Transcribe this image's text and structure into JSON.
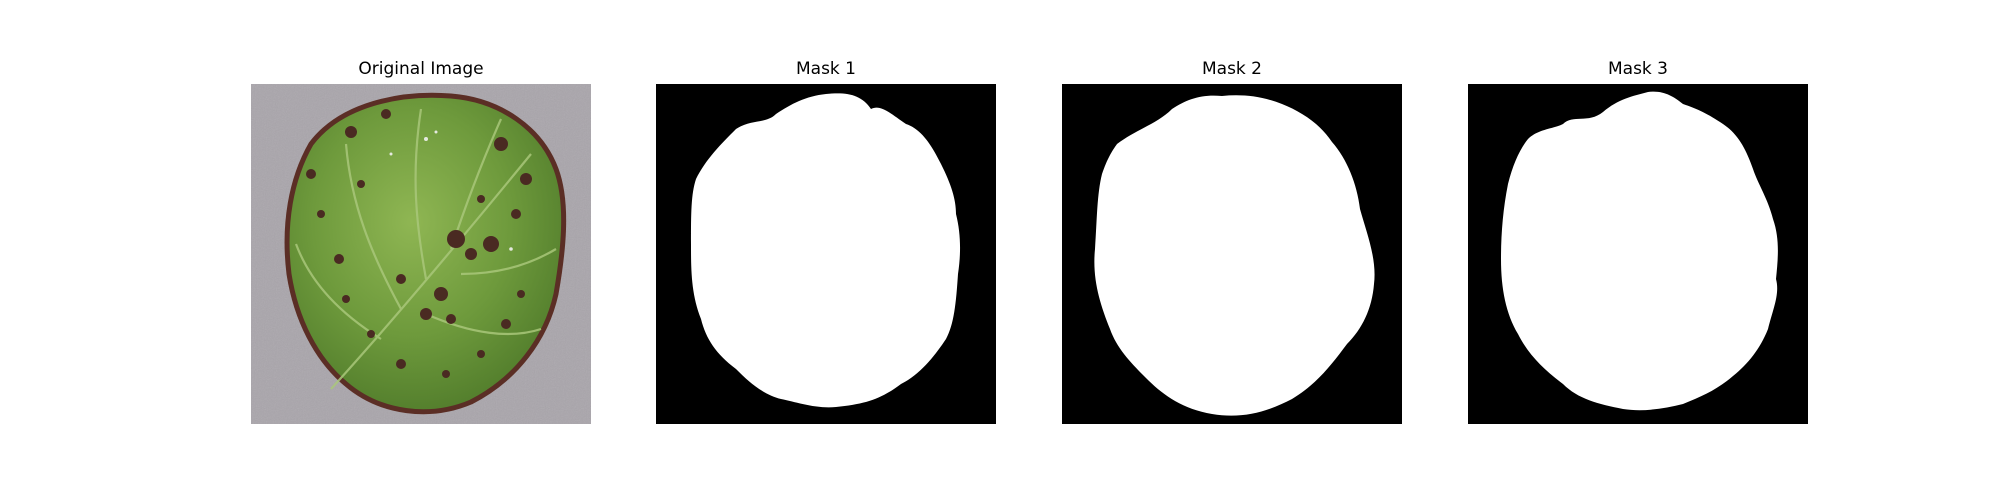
{
  "figure": {
    "panels": [
      {
        "title": "Original Image"
      },
      {
        "title": "Mask 1"
      },
      {
        "title": "Mask 2"
      },
      {
        "title": "Mask 3"
      }
    ]
  },
  "colors": {
    "mask_background": "#000000",
    "mask_foreground": "#ffffff",
    "photo_background": "#a9a5ab",
    "leaf_green": "#6e9a3c",
    "lesion_brown": "#4a2a22"
  }
}
